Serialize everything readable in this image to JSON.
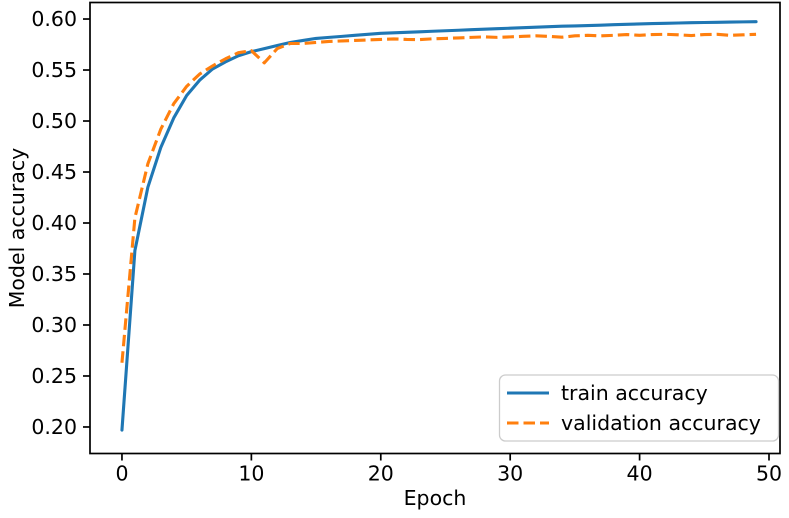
{
  "chart_data": {
    "type": "line",
    "title": "",
    "xlabel": "Epoch",
    "ylabel": "Model accuracy",
    "grid": false,
    "legend_position": "lower right",
    "xlim": [
      -2.47,
      50.85
    ],
    "ylim": [
      0.174,
      0.6162
    ],
    "xticks": [
      0,
      10,
      20,
      30,
      40,
      50
    ],
    "xtick_labels": [
      "0",
      "10",
      "20",
      "30",
      "40",
      "50"
    ],
    "yticks": [
      0.2,
      0.25,
      0.3,
      0.35,
      0.4,
      0.45,
      0.5,
      0.55,
      0.6
    ],
    "ytick_labels": [
      "0.20",
      "0.25",
      "0.30",
      "0.35",
      "0.40",
      "0.45",
      "0.50",
      "0.55",
      "0.60"
    ],
    "x": [
      0,
      1,
      2,
      3,
      4,
      5,
      6,
      7,
      8,
      9,
      10,
      11,
      12,
      13,
      14,
      15,
      16,
      17,
      18,
      19,
      20,
      21,
      22,
      23,
      24,
      25,
      26,
      27,
      28,
      29,
      30,
      31,
      32,
      33,
      34,
      35,
      36,
      37,
      38,
      39,
      40,
      41,
      42,
      43,
      44,
      45,
      46,
      47,
      48,
      49
    ],
    "series": [
      {
        "name": "train accuracy",
        "color": "#1f77b4",
        "style": "solid",
        "values": [
          0.197,
          0.373,
          0.435,
          0.474,
          0.503,
          0.525,
          0.54,
          0.551,
          0.558,
          0.564,
          0.568,
          0.571,
          0.574,
          0.577,
          0.579,
          0.581,
          0.582,
          0.583,
          0.584,
          0.585,
          0.586,
          0.5865,
          0.587,
          0.5875,
          0.588,
          0.5885,
          0.589,
          0.5895,
          0.59,
          0.5905,
          0.591,
          0.5915,
          0.592,
          0.5925,
          0.593,
          0.5932,
          0.5936,
          0.594,
          0.5944,
          0.5948,
          0.5952,
          0.5955,
          0.5958,
          0.5961,
          0.5964,
          0.5966,
          0.5968,
          0.597,
          0.5972,
          0.5974
        ]
      },
      {
        "name": "validation accuracy",
        "color": "#ff7f0e",
        "style": "dashed",
        "values": [
          0.263,
          0.405,
          0.458,
          0.492,
          0.517,
          0.534,
          0.546,
          0.554,
          0.561,
          0.567,
          0.569,
          0.557,
          0.571,
          0.576,
          0.576,
          0.577,
          0.578,
          0.5785,
          0.579,
          0.5795,
          0.58,
          0.5805,
          0.58,
          0.5798,
          0.5806,
          0.581,
          0.5815,
          0.582,
          0.5825,
          0.582,
          0.5825,
          0.583,
          0.5835,
          0.583,
          0.5822,
          0.5835,
          0.584,
          0.5835,
          0.584,
          0.5848,
          0.584,
          0.5848,
          0.585,
          0.5845,
          0.5838,
          0.5848,
          0.585,
          0.584,
          0.5845,
          0.585
        ]
      }
    ]
  }
}
